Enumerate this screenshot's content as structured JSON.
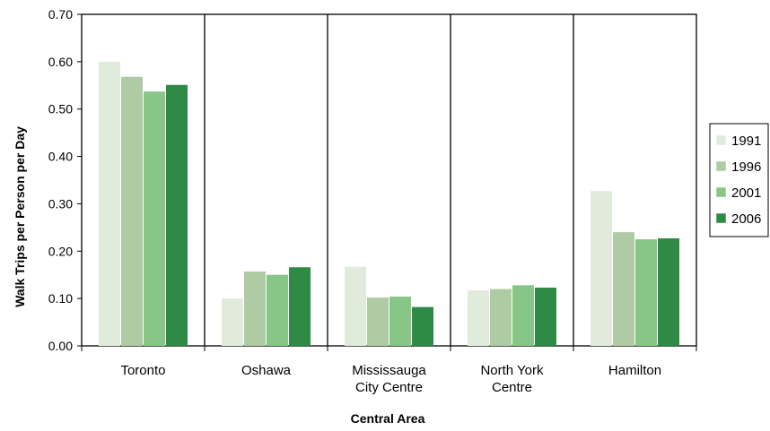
{
  "chart_data": {
    "type": "bar",
    "xlabel": "Central Area",
    "ylabel": "Walk Trips per Person per Day",
    "ylim": [
      0,
      0.7
    ],
    "yticks": [
      "0.00",
      "0.10",
      "0.20",
      "0.30",
      "0.40",
      "0.50",
      "0.60",
      "0.70"
    ],
    "categories": [
      [
        "Toronto"
      ],
      [
        "Oshawa"
      ],
      [
        "Mississauga",
        "City Centre"
      ],
      [
        "North York",
        "Centre"
      ],
      [
        "Hamilton"
      ]
    ],
    "series": [
      {
        "name": "1991",
        "color": "#e1ebdc",
        "values": [
          0.6,
          0.1,
          0.167,
          0.117,
          0.327
        ]
      },
      {
        "name": "1996",
        "color": "#aecba3",
        "values": [
          0.568,
          0.157,
          0.102,
          0.12,
          0.24
        ]
      },
      {
        "name": "2001",
        "color": "#87c686",
        "values": [
          0.537,
          0.15,
          0.104,
          0.128,
          0.225
        ]
      },
      {
        "name": "2006",
        "color": "#2f8a45",
        "values": [
          0.551,
          0.166,
          0.082,
          0.123,
          0.227
        ]
      }
    ],
    "grid": false,
    "legend": "right"
  }
}
